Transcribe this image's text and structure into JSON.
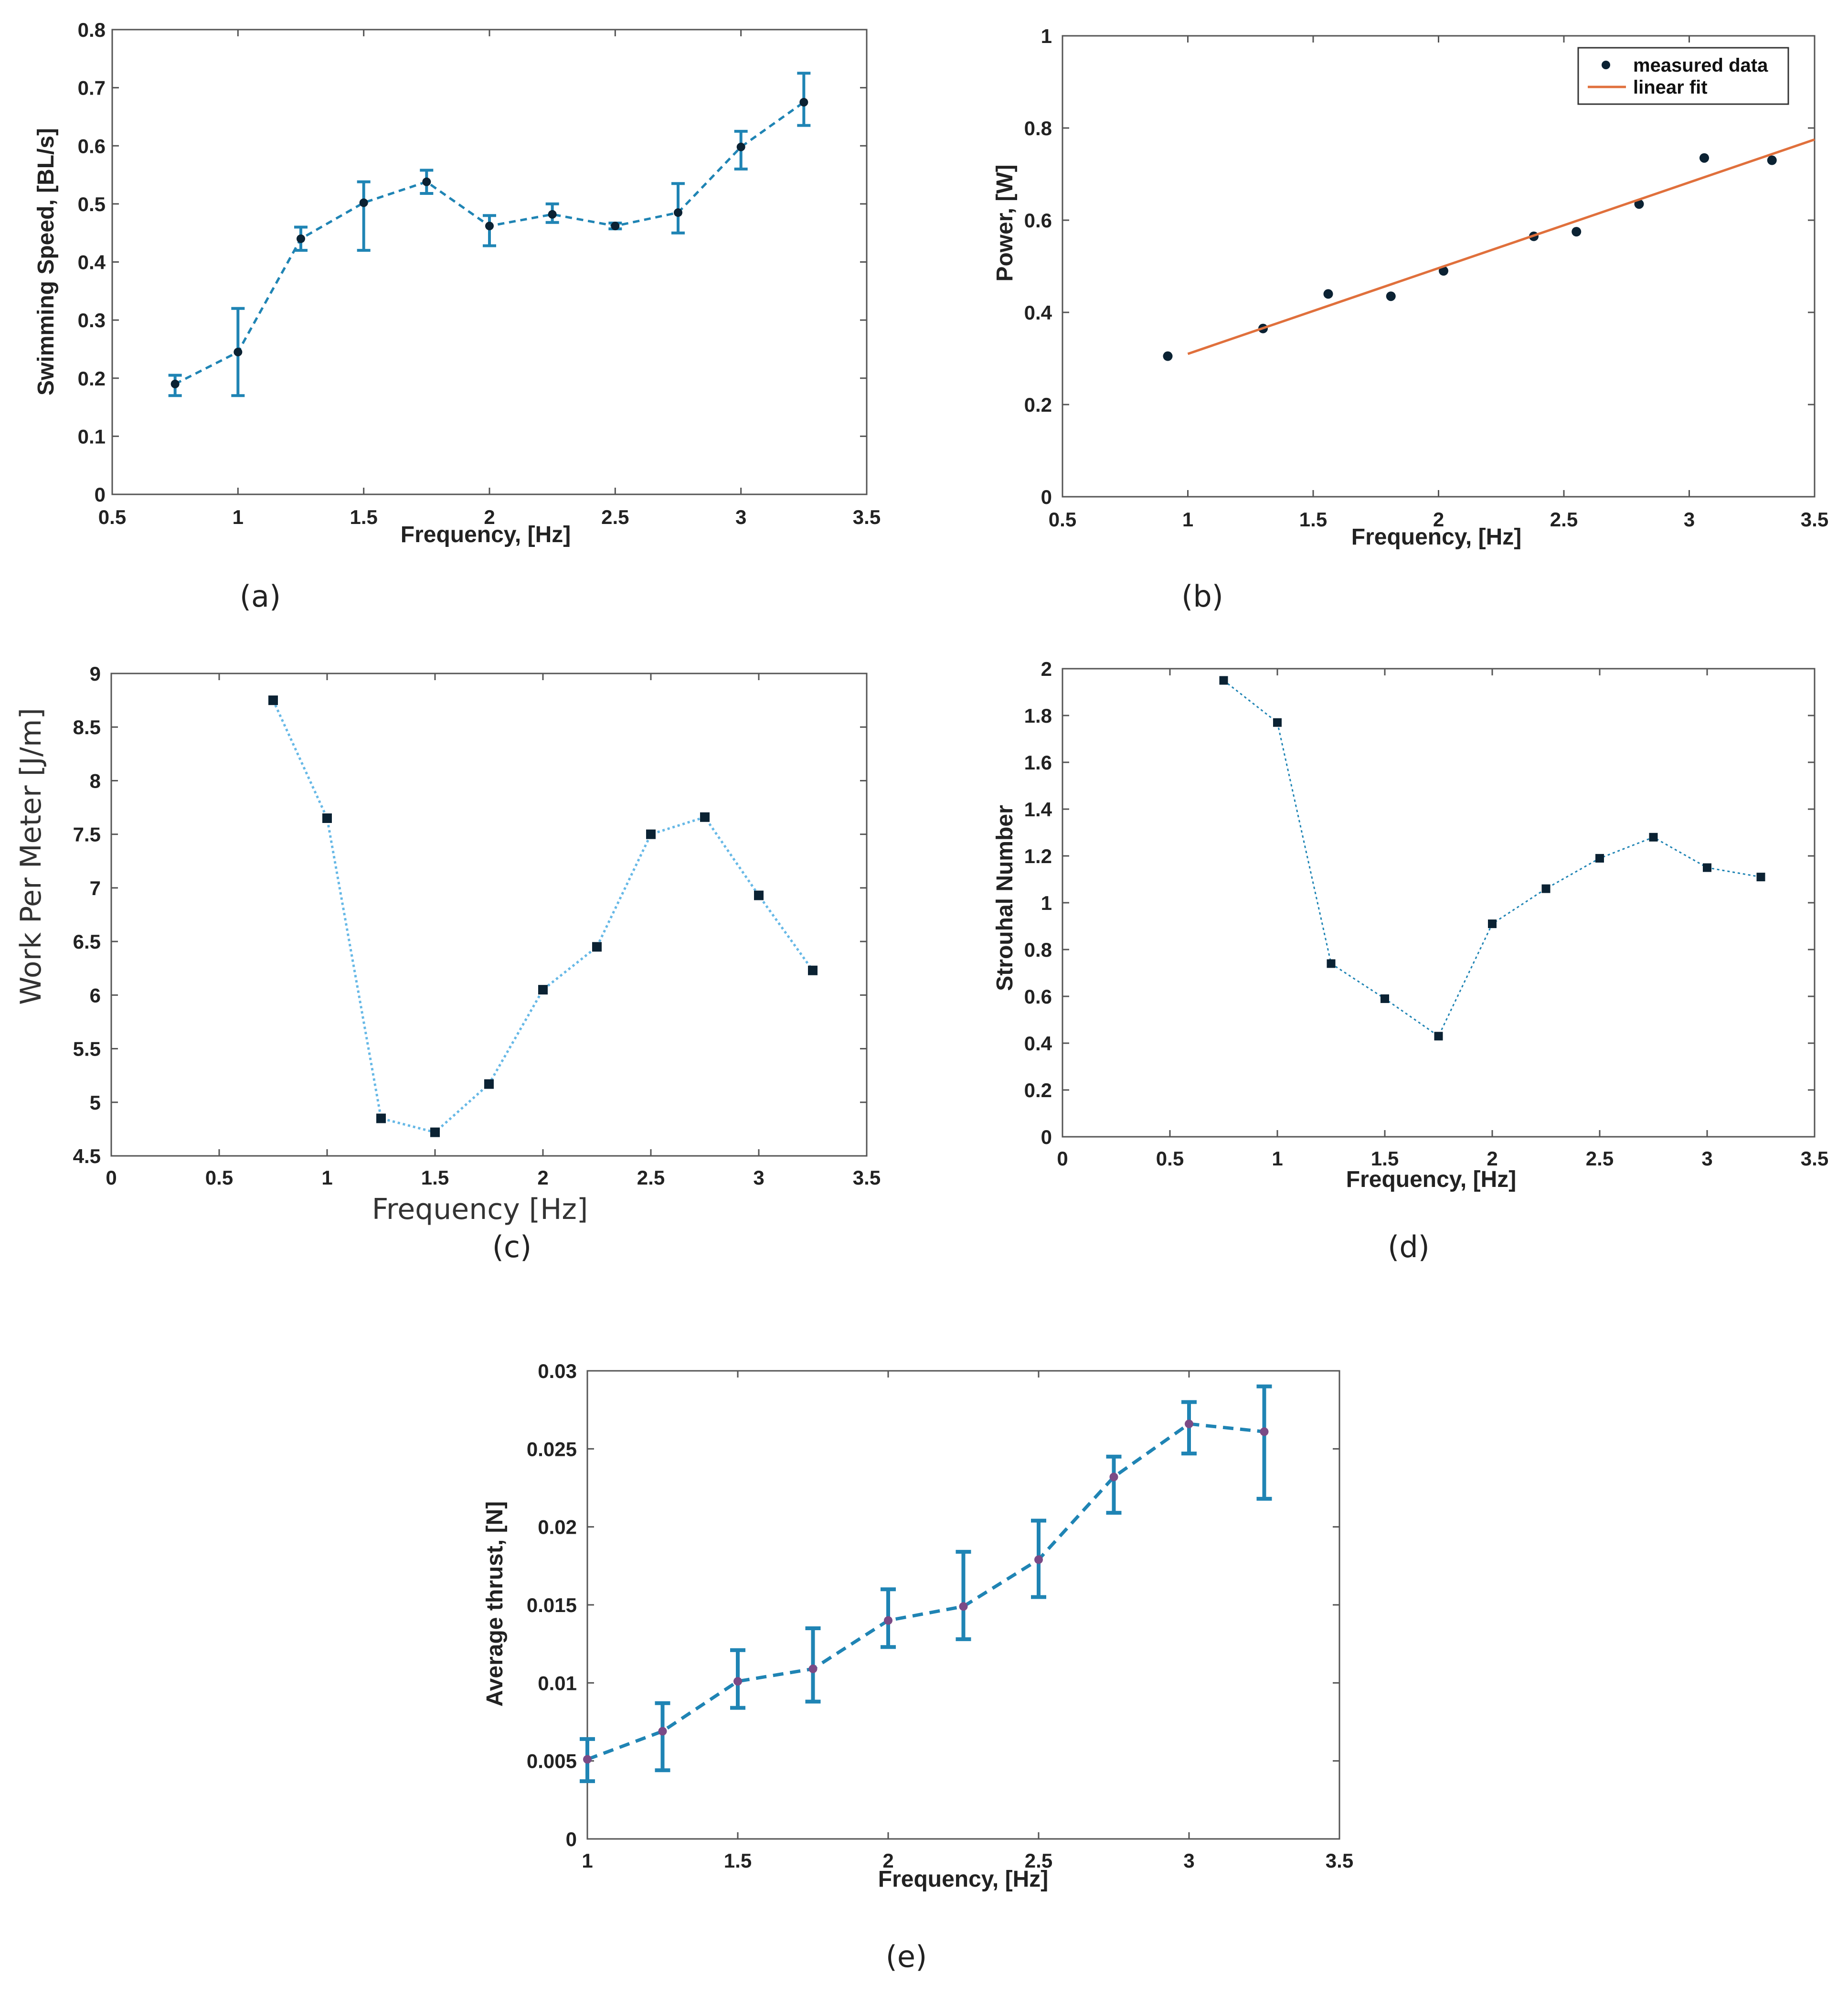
{
  "colors": {
    "series_blue": "#1f84b4",
    "light_blue": "#66b8e6",
    "marker_dark": "#0b2233",
    "fit_orange": "#e0703c",
    "thrust_marker": "#7b4a86"
  },
  "chart_data": [
    {
      "id": "a",
      "caption": "(a)",
      "type": "line",
      "xlabel": "Frequency, [Hz]",
      "ylabel": "Swimming Speed, [BL/s]",
      "xlim": [
        0.5,
        3.5
      ],
      "ylim": [
        0,
        0.8
      ],
      "xticks": [
        0.5,
        1,
        1.5,
        2,
        2.5,
        3,
        3.5
      ],
      "xtick_labels": [
        "0.5",
        "1",
        "1.5",
        "2",
        "2.5",
        "3",
        "3.5"
      ],
      "yticks": [
        0,
        0.1,
        0.2,
        0.3,
        0.4,
        0.5,
        0.6,
        0.7,
        0.8
      ],
      "ytick_labels": [
        "0",
        "0.1",
        "0.2",
        "0.3",
        "0.4",
        "0.5",
        "0.6",
        "0.7",
        "0.8"
      ],
      "grid": false,
      "series": [
        {
          "x": [
            0.75,
            1,
            1.25,
            1.5,
            1.75,
            2,
            2.25,
            2.5,
            2.75,
            3,
            3.25
          ],
          "y": [
            0.19,
            0.245,
            0.44,
            0.502,
            0.538,
            0.462,
            0.482,
            0.462,
            0.485,
            0.598,
            0.675
          ],
          "err_low": [
            0.17,
            0.17,
            0.42,
            0.42,
            0.518,
            0.428,
            0.468,
            0.457,
            0.45,
            0.56,
            0.635
          ],
          "err_high": [
            0.205,
            0.32,
            0.46,
            0.538,
            0.558,
            0.48,
            0.5,
            0.467,
            0.535,
            0.625,
            0.725
          ],
          "marker": "circle",
          "line": "dashed"
        }
      ]
    },
    {
      "id": "b",
      "caption": "(b)",
      "type": "scatter",
      "xlabel": "Frequency, [Hz]",
      "ylabel": "Power, [W]",
      "xlim": [
        0.5,
        3.5
      ],
      "ylim": [
        0,
        1
      ],
      "xticks": [
        0.5,
        1,
        1.5,
        2,
        2.5,
        3,
        3.5
      ],
      "xtick_labels": [
        "0.5",
        "1",
        "1.5",
        "2",
        "2.5",
        "3",
        "3.5"
      ],
      "yticks": [
        0,
        0.2,
        0.4,
        0.6,
        0.8,
        1
      ],
      "ytick_labels": [
        "0",
        "0.2",
        "0.4",
        "0.6",
        "0.8",
        "1"
      ],
      "grid": false,
      "legend_position": "top-right",
      "series": [
        {
          "name": "measured data",
          "x": [
            0.92,
            1.3,
            1.56,
            1.81,
            2.02,
            2.38,
            2.55,
            2.8,
            3.06,
            3.33
          ],
          "y": [
            0.305,
            0.365,
            0.44,
            0.435,
            0.49,
            0.565,
            0.575,
            0.635,
            0.735,
            0.73
          ],
          "marker": "circle"
        },
        {
          "name": "linear fit",
          "x": [
            1.0,
            3.5
          ],
          "y": [
            0.31,
            0.775
          ],
          "line": "solid"
        }
      ]
    },
    {
      "id": "c",
      "caption": "(c)",
      "type": "line",
      "xlabel": "Frequency [Hz]",
      "ylabel": "Work Per Meter [J/m]",
      "xlim": [
        0,
        3.5
      ],
      "ylim": [
        4.5,
        9
      ],
      "xticks": [
        0,
        0.5,
        1,
        1.5,
        2,
        2.5,
        3,
        3.5
      ],
      "xtick_labels": [
        "0",
        "0.5",
        "1",
        "1.5",
        "2",
        "2.5",
        "3",
        "3.5"
      ],
      "yticks": [
        4.5,
        5,
        5.5,
        6,
        6.5,
        7,
        7.5,
        8,
        8.5,
        9
      ],
      "ytick_labels": [
        "4.5",
        "5",
        "5.5",
        "6",
        "6.5",
        "7",
        "7.5",
        "8",
        "8.5",
        "9"
      ],
      "grid": false,
      "series": [
        {
          "x": [
            0.75,
            1,
            1.25,
            1.5,
            1.75,
            2,
            2.25,
            2.5,
            2.75,
            3,
            3.25
          ],
          "y": [
            8.75,
            7.65,
            4.85,
            4.72,
            5.17,
            6.05,
            6.45,
            7.5,
            7.66,
            6.93,
            6.23
          ],
          "marker": "square",
          "line": "dotted"
        }
      ]
    },
    {
      "id": "d",
      "caption": "(d)",
      "type": "line",
      "xlabel": "Frequency, [Hz]",
      "ylabel": "Strouhal Number",
      "xlim": [
        0,
        3.5
      ],
      "ylim": [
        0,
        2
      ],
      "xticks": [
        0,
        0.5,
        1,
        1.5,
        2,
        2.5,
        3,
        3.5
      ],
      "xtick_labels": [
        "0",
        "0.5",
        "1",
        "1.5",
        "2",
        "2.5",
        "3",
        "3.5"
      ],
      "yticks": [
        0,
        0.2,
        0.4,
        0.6,
        0.8,
        1,
        1.2,
        1.4,
        1.6,
        1.8,
        2
      ],
      "ytick_labels": [
        "0",
        "0.2",
        "0.4",
        "0.6",
        "0.8",
        "1",
        "1.2",
        "1.4",
        "1.6",
        "1.8",
        "2"
      ],
      "grid": false,
      "series": [
        {
          "x": [
            0.75,
            1,
            1.25,
            1.5,
            1.75,
            2,
            2.25,
            2.5,
            2.75,
            3,
            3.25
          ],
          "y": [
            1.95,
            1.77,
            0.74,
            0.59,
            0.43,
            0.91,
            1.06,
            1.19,
            1.28,
            1.15,
            1.11
          ],
          "marker": "square",
          "line": "dotted"
        }
      ]
    },
    {
      "id": "e",
      "caption": "(e)",
      "type": "line",
      "xlabel": "Frequency, [Hz]",
      "ylabel": "Average thrust, [N]",
      "xlim": [
        1,
        3.5
      ],
      "ylim": [
        0,
        0.03
      ],
      "xticks": [
        1,
        1.5,
        2,
        2.5,
        3,
        3.5
      ],
      "xtick_labels": [
        "1",
        "1.5",
        "2",
        "2.5",
        "3",
        "3.5"
      ],
      "yticks": [
        0,
        0.005,
        0.01,
        0.015,
        0.02,
        0.025,
        0.03
      ],
      "ytick_labels": [
        "0",
        "0.005",
        "0.01",
        "0.015",
        "0.02",
        "0.025",
        "0.03"
      ],
      "grid": false,
      "series": [
        {
          "x": [
            1,
            1.25,
            1.5,
            1.75,
            2,
            2.25,
            2.5,
            2.75,
            3,
            3.25
          ],
          "y": [
            0.0051,
            0.0069,
            0.0101,
            0.0109,
            0.014,
            0.0149,
            0.0179,
            0.0232,
            0.0266,
            0.0261
          ],
          "err_low": [
            0.0037,
            0.0044,
            0.0084,
            0.0088,
            0.0123,
            0.0128,
            0.0155,
            0.0209,
            0.0247,
            0.0218
          ],
          "err_high": [
            0.0064,
            0.0087,
            0.0121,
            0.0135,
            0.016,
            0.0184,
            0.0204,
            0.0245,
            0.028,
            0.029
          ],
          "marker": "circle",
          "line": "dashed"
        }
      ]
    }
  ]
}
